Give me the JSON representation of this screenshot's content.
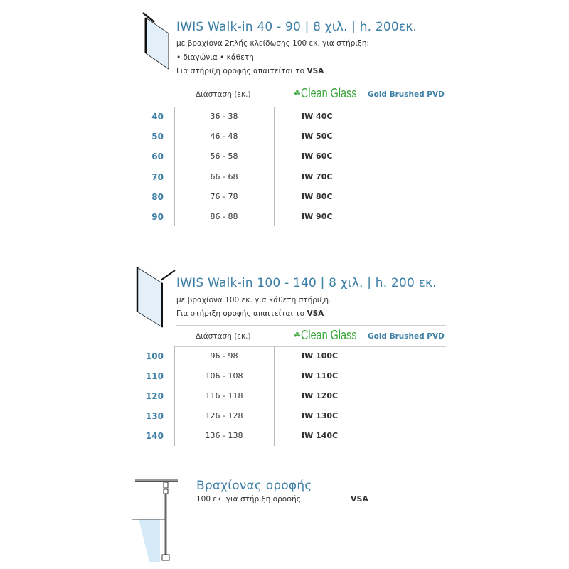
{
  "section1": {
    "title": "IWIS   Walk-in   40 - 90  | 8 χιλ. | h. 200εκ.",
    "line1": "με βραχίονα 2πλής κλείδωσης 100 εκ. για στήριξη:",
    "line2": "• διαγώνια   • κάθετη",
    "line3_prefix": "Για στήριξη οροφής απαιτείται το ",
    "line3_bold": "VSA",
    "headers": {
      "dimension": "Διάσταση (εκ.)",
      "clean_glass": "Clean Glass",
      "finish": "Gold Brushed PVD"
    },
    "rows": [
      {
        "size": "40",
        "range": "36 - 38",
        "code": "IW 40C"
      },
      {
        "size": "50",
        "range": "46 - 48",
        "code": "IW 50C"
      },
      {
        "size": "60",
        "range": "56 - 58",
        "code": "IW 60C"
      },
      {
        "size": "70",
        "range": "66 - 68",
        "code": "IW 70C"
      },
      {
        "size": "80",
        "range": "76 - 78",
        "code": "IW 80C"
      },
      {
        "size": "90",
        "range": "86 - 88",
        "code": "IW 90C"
      }
    ]
  },
  "section2": {
    "title": "IWIS   Walk-in   100 - 140  | 8 χιλ. | h. 200 εκ.",
    "line1": "με βραχίονα 100 εκ. για κάθετη στήριξη.",
    "line3_prefix": "Για στήριξη οροφής απαιτείται το ",
    "line3_bold": "VSA",
    "headers": {
      "dimension": "Διάσταση (εκ.)",
      "clean_glass": "Clean Glass",
      "finish": "Gold Brushed PVD"
    },
    "rows": [
      {
        "size": "100",
        "range": "96 - 98",
        "code": "IW 100C"
      },
      {
        "size": "110",
        "range": "106 - 108",
        "code": "IW 110C"
      },
      {
        "size": "120",
        "range": "116 - 118",
        "code": "IW 120C"
      },
      {
        "size": "130",
        "range": "126 - 128",
        "code": "IW 130C"
      },
      {
        "size": "140",
        "range": "136 - 138",
        "code": "IW 140C"
      }
    ]
  },
  "section3": {
    "title": "Βραχίονας οροφής",
    "desc": "100 εκ. για στήριξη οροφής",
    "code": "VSA"
  },
  "colors": {
    "accent": "#3b7ea6",
    "clean_glass": "#3aa53a"
  }
}
